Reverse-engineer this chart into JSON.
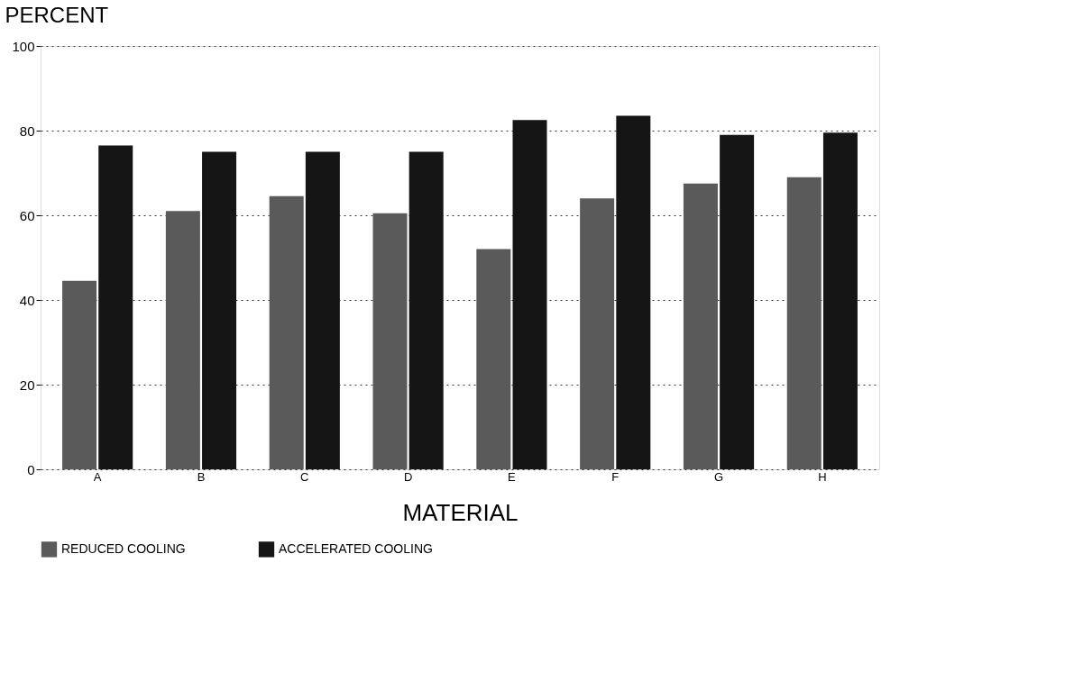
{
  "chart_data": {
    "type": "bar",
    "xlabel": "MATERIAL",
    "ylabel": "PERCENT",
    "categories": [
      "A",
      "B",
      "C",
      "D",
      "E",
      "F",
      "G",
      "H"
    ],
    "series": [
      {
        "name": "REDUCED COOLING",
        "color": "#5a5a5a",
        "values": [
          44.5,
          61,
          64.5,
          60.5,
          52,
          64,
          67.5,
          69
        ]
      },
      {
        "name": "ACCELERATED COOLING",
        "color": "#151515",
        "values": [
          76.5,
          75,
          75,
          75,
          82.5,
          83.5,
          79,
          79.5
        ]
      }
    ],
    "ylim": [
      0,
      100
    ],
    "yticks": [
      0,
      20,
      40,
      60,
      80,
      100
    ],
    "grid": "y",
    "legend": "bottom"
  }
}
